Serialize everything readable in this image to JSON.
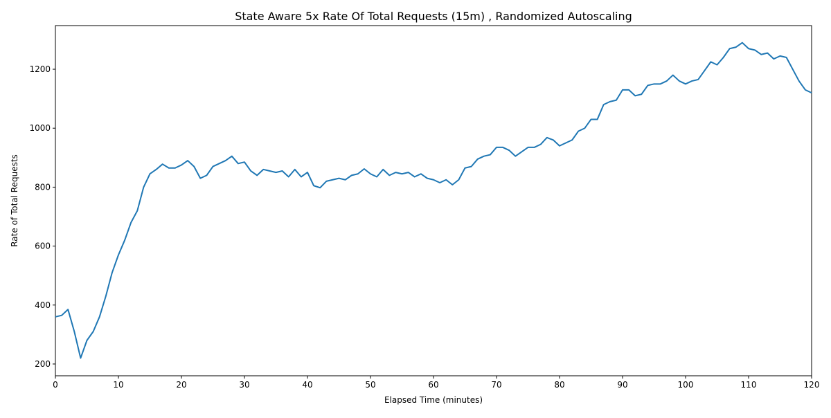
{
  "chart_data": {
    "type": "line",
    "title": "State Aware 5x Rate Of Total Requests (15m) , Randomized Autoscaling",
    "x_label": "Elapsed Time (minutes)",
    "y_label": "Rate of Total Requests",
    "x": [
      0,
      1,
      2,
      3,
      4,
      5,
      6,
      7,
      8,
      9,
      10,
      11,
      12,
      13,
      14,
      15,
      16,
      17,
      18,
      19,
      20,
      21,
      22,
      23,
      24,
      25,
      26,
      27,
      28,
      29,
      30,
      31,
      32,
      33,
      34,
      35,
      36,
      37,
      38,
      39,
      40,
      41,
      42,
      43,
      44,
      45,
      46,
      47,
      48,
      49,
      50,
      51,
      52,
      53,
      54,
      55,
      56,
      57,
      58,
      59,
      60,
      61,
      62,
      63,
      64,
      65,
      66,
      67,
      68,
      69,
      70,
      71,
      72,
      73,
      74,
      75,
      76,
      77,
      78,
      79,
      80,
      81,
      82,
      83,
      84,
      85,
      86,
      87,
      88,
      89,
      90,
      91,
      92,
      93,
      94,
      95,
      96,
      97,
      98,
      99,
      100,
      101,
      102,
      103,
      104,
      105,
      106,
      107,
      108,
      109,
      110,
      111,
      112,
      113,
      114,
      115,
      116,
      117,
      118,
      119,
      120
    ],
    "series": [
      {
        "name": "Rate of Total Requests",
        "color": "#1f77b4",
        "values": [
          360,
          365,
          385,
          310,
          220,
          280,
          310,
          360,
          430,
          510,
          570,
          620,
          680,
          720,
          800,
          845,
          860,
          878,
          865,
          865,
          875,
          890,
          870,
          830,
          840,
          870,
          880,
          890,
          905,
          880,
          885,
          855,
          840,
          860,
          855,
          850,
          855,
          835,
          860,
          835,
          850,
          805,
          798,
          820,
          825,
          830,
          825,
          840,
          845,
          862,
          845,
          835,
          860,
          840,
          850,
          845,
          850,
          835,
          845,
          830,
          825,
          815,
          825,
          808,
          825,
          865,
          870,
          895,
          905,
          910,
          935,
          935,
          925,
          905,
          920,
          935,
          935,
          945,
          968,
          960,
          940,
          950,
          960,
          990,
          1000,
          1030,
          1030,
          1080,
          1090,
          1095,
          1130,
          1130,
          1110,
          1115,
          1145,
          1150,
          1150,
          1160,
          1180,
          1160,
          1150,
          1160,
          1165,
          1195,
          1225,
          1215,
          1240,
          1270,
          1275,
          1290,
          1270,
          1265,
          1250,
          1255,
          1235,
          1245,
          1240,
          1200,
          1160,
          1130,
          1120
        ]
      }
    ],
    "xlim": [
      0,
      120
    ],
    "xticks": [
      0,
      10,
      20,
      30,
      40,
      50,
      60,
      70,
      80,
      90,
      100,
      110,
      120
    ],
    "ylim": [
      160,
      1348
    ],
    "yticks": [
      200,
      400,
      600,
      800,
      1000,
      1200
    ],
    "grid": false
  }
}
